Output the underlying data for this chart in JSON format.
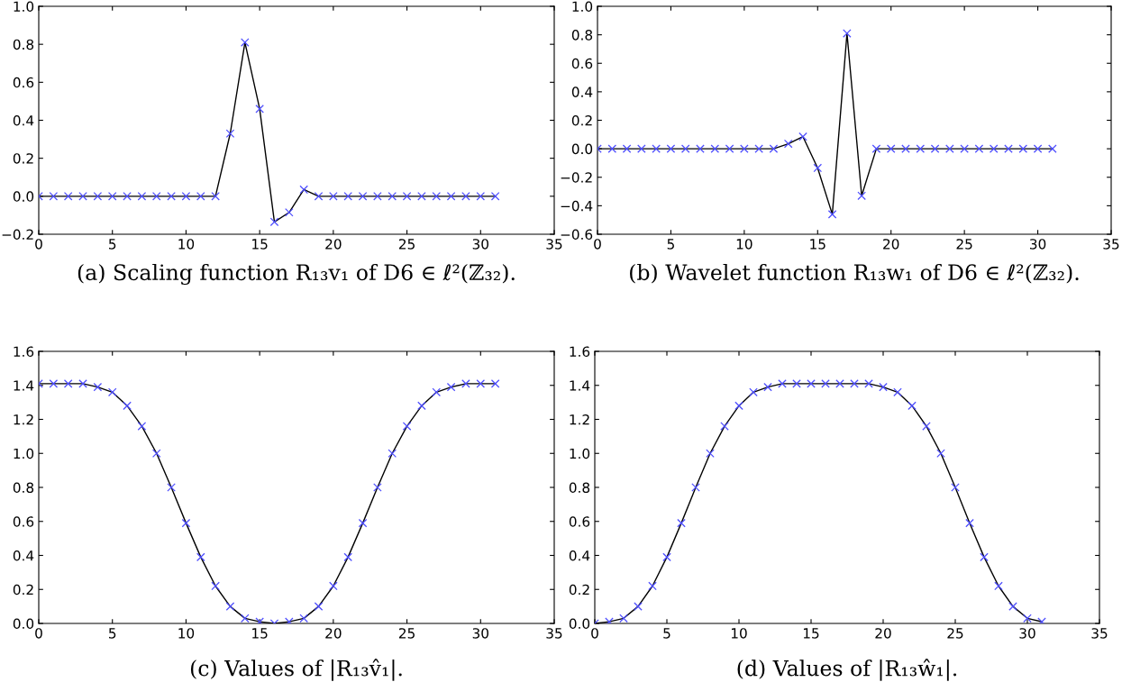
{
  "chart_data": [
    {
      "type": "line",
      "title": "(a) Scaling function R₁₃v₁ of D6 ∈ ℓ²(ℤ₃₂).",
      "x": [
        0,
        1,
        2,
        3,
        4,
        5,
        6,
        7,
        8,
        9,
        10,
        11,
        12,
        13,
        14,
        15,
        16,
        17,
        18,
        19,
        20,
        21,
        22,
        23,
        24,
        25,
        26,
        27,
        28,
        29,
        30,
        31
      ],
      "series": [
        {
          "type": "line",
          "color": "#000000",
          "marker": "none",
          "values": [
            0,
            0,
            0,
            0,
            0,
            0,
            0,
            0,
            0,
            0,
            0,
            0,
            0,
            0.33,
            0.81,
            0.46,
            -0.135,
            -0.085,
            0.035,
            0,
            0,
            0,
            0,
            0,
            0,
            0,
            0,
            0,
            0,
            0,
            0,
            0
          ]
        },
        {
          "type": "scatter",
          "color": "#4d4dff",
          "marker": "cross",
          "values": [
            0,
            0,
            0,
            0,
            0,
            0,
            0,
            0,
            0,
            0,
            0,
            0,
            0,
            0.33,
            0.81,
            0.46,
            -0.135,
            -0.085,
            0.035,
            0,
            0,
            0,
            0,
            0,
            0,
            0,
            0,
            0,
            0,
            0,
            0,
            0
          ]
        }
      ],
      "xlim": [
        0,
        35
      ],
      "xticks": [
        0,
        5,
        10,
        15,
        20,
        25,
        30,
        35
      ],
      "ylim": [
        -0.2,
        1.0
      ],
      "yticks": [
        {
          "value": -0.2,
          "label": "−0.2"
        },
        {
          "value": 0,
          "label": "0.0"
        },
        {
          "value": 0.2,
          "label": "0.2"
        },
        {
          "value": 0.4,
          "label": "0.4"
        },
        {
          "value": 0.6,
          "label": "0.6"
        },
        {
          "value": 0.8,
          "label": "0.8"
        },
        {
          "value": 1.0,
          "label": "1.0"
        }
      ]
    },
    {
      "type": "line",
      "title": "(b) Wavelet function R₁₃w₁ of D6 ∈ ℓ²(ℤ₃₂).",
      "x": [
        0,
        1,
        2,
        3,
        4,
        5,
        6,
        7,
        8,
        9,
        10,
        11,
        12,
        13,
        14,
        15,
        16,
        17,
        18,
        19,
        20,
        21,
        22,
        23,
        24,
        25,
        26,
        27,
        28,
        29,
        30,
        31
      ],
      "series": [
        {
          "type": "line",
          "color": "#000000",
          "marker": "none",
          "values": [
            0,
            0,
            0,
            0,
            0,
            0,
            0,
            0,
            0,
            0,
            0,
            0,
            0,
            0.035,
            0.085,
            -0.135,
            -0.46,
            0.81,
            -0.33,
            0,
            0,
            0,
            0,
            0,
            0,
            0,
            0,
            0,
            0,
            0,
            0,
            0
          ]
        },
        {
          "type": "scatter",
          "color": "#4d4dff",
          "marker": "cross",
          "values": [
            0,
            0,
            0,
            0,
            0,
            0,
            0,
            0,
            0,
            0,
            0,
            0,
            0,
            0.035,
            0.085,
            -0.135,
            -0.46,
            0.81,
            -0.33,
            0,
            0,
            0,
            0,
            0,
            0,
            0,
            0,
            0,
            0,
            0,
            0,
            0
          ]
        }
      ],
      "xlim": [
        0,
        35
      ],
      "xticks": [
        0,
        5,
        10,
        15,
        20,
        25,
        30,
        35
      ],
      "ylim": [
        -0.6,
        1.0
      ],
      "yticks": [
        {
          "value": -0.6,
          "label": "−0.6"
        },
        {
          "value": -0.4,
          "label": "−0.4"
        },
        {
          "value": -0.2,
          "label": "−0.2"
        },
        {
          "value": 0,
          "label": "0.0"
        },
        {
          "value": 0.2,
          "label": "0.2"
        },
        {
          "value": 0.4,
          "label": "0.4"
        },
        {
          "value": 0.6,
          "label": "0.6"
        },
        {
          "value": 0.8,
          "label": "0.8"
        },
        {
          "value": 1.0,
          "label": "1.0"
        }
      ]
    },
    {
      "type": "line",
      "title": "(c) Values of |R₁₃v̂₁|.",
      "x": [
        0,
        1,
        2,
        3,
        4,
        5,
        6,
        7,
        8,
        9,
        10,
        11,
        12,
        13,
        14,
        15,
        16,
        17,
        18,
        19,
        20,
        21,
        22,
        23,
        24,
        25,
        26,
        27,
        28,
        29,
        30,
        31
      ],
      "series": [
        {
          "type": "line",
          "color": "#000000",
          "marker": "none",
          "values": [
            1.41,
            1.41,
            1.41,
            1.41,
            1.39,
            1.36,
            1.28,
            1.16,
            1.0,
            0.8,
            0.59,
            0.39,
            0.22,
            0.1,
            0.03,
            0.01,
            0,
            0.01,
            0.03,
            0.1,
            0.22,
            0.39,
            0.59,
            0.8,
            1.0,
            1.16,
            1.28,
            1.36,
            1.39,
            1.41,
            1.41,
            1.41
          ]
        },
        {
          "type": "scatter",
          "color": "#4d4dff",
          "marker": "cross",
          "values": [
            1.41,
            1.41,
            1.41,
            1.41,
            1.39,
            1.36,
            1.28,
            1.16,
            1.0,
            0.8,
            0.59,
            0.39,
            0.22,
            0.1,
            0.03,
            0.01,
            0,
            0.01,
            0.03,
            0.1,
            0.22,
            0.39,
            0.59,
            0.8,
            1.0,
            1.16,
            1.28,
            1.36,
            1.39,
            1.41,
            1.41,
            1.41
          ]
        }
      ],
      "xlim": [
        0,
        35
      ],
      "xticks": [
        0,
        5,
        10,
        15,
        20,
        25,
        30,
        35
      ],
      "ylim": [
        0,
        1.6
      ],
      "yticks": [
        {
          "value": 0,
          "label": "0.0"
        },
        {
          "value": 0.2,
          "label": "0.2"
        },
        {
          "value": 0.4,
          "label": "0.4"
        },
        {
          "value": 0.6,
          "label": "0.6"
        },
        {
          "value": 0.8,
          "label": "0.8"
        },
        {
          "value": 1.0,
          "label": "1.0"
        },
        {
          "value": 1.2,
          "label": "1.2"
        },
        {
          "value": 1.4,
          "label": "1.4"
        },
        {
          "value": 1.6,
          "label": "1.6"
        }
      ]
    },
    {
      "type": "line",
      "title": "(d) Values of |R₁₃ŵ₁|.",
      "x": [
        0,
        1,
        2,
        3,
        4,
        5,
        6,
        7,
        8,
        9,
        10,
        11,
        12,
        13,
        14,
        15,
        16,
        17,
        18,
        19,
        20,
        21,
        22,
        23,
        24,
        25,
        26,
        27,
        28,
        29,
        30,
        31
      ],
      "series": [
        {
          "type": "line",
          "color": "#000000",
          "marker": "none",
          "values": [
            0,
            0.01,
            0.03,
            0.1,
            0.22,
            0.39,
            0.59,
            0.8,
            1.0,
            1.16,
            1.28,
            1.36,
            1.39,
            1.41,
            1.41,
            1.41,
            1.41,
            1.41,
            1.41,
            1.41,
            1.39,
            1.36,
            1.28,
            1.16,
            1.0,
            0.8,
            0.59,
            0.39,
            0.22,
            0.1,
            0.03,
            0.01
          ]
        },
        {
          "type": "scatter",
          "color": "#4d4dff",
          "marker": "cross",
          "values": [
            0,
            0.01,
            0.03,
            0.1,
            0.22,
            0.39,
            0.59,
            0.8,
            1.0,
            1.16,
            1.28,
            1.36,
            1.39,
            1.41,
            1.41,
            1.41,
            1.41,
            1.41,
            1.41,
            1.41,
            1.39,
            1.36,
            1.28,
            1.16,
            1.0,
            0.8,
            0.59,
            0.39,
            0.22,
            0.1,
            0.03,
            0.01
          ]
        }
      ],
      "xlim": [
        0,
        35
      ],
      "xticks": [
        0,
        5,
        10,
        15,
        20,
        25,
        30,
        35
      ],
      "ylim": [
        0,
        1.6
      ],
      "yticks": [
        {
          "value": 0,
          "label": "0.0"
        },
        {
          "value": 0.2,
          "label": "0.2"
        },
        {
          "value": 0.4,
          "label": "0.4"
        },
        {
          "value": 0.6,
          "label": "0.6"
        },
        {
          "value": 0.8,
          "label": "0.8"
        },
        {
          "value": 1.0,
          "label": "1.0"
        },
        {
          "value": 1.2,
          "label": "1.2"
        },
        {
          "value": 1.4,
          "label": "1.4"
        },
        {
          "value": 1.6,
          "label": "1.6"
        }
      ]
    }
  ]
}
